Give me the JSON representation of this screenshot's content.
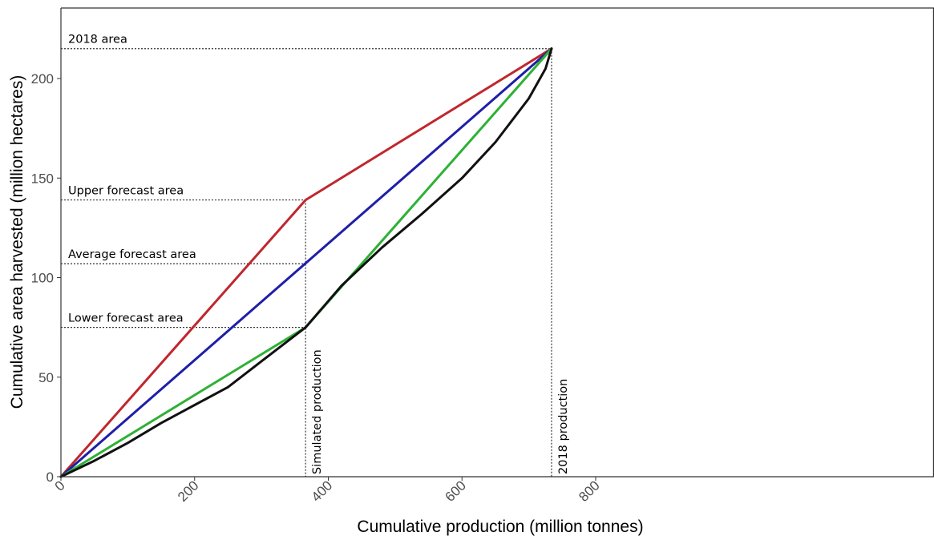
{
  "chart_data": {
    "type": "line",
    "title": "",
    "xlabel": "Cumulative production (million tonnes)",
    "ylabel": "Cumulative area harvested (million hectares)",
    "xlim": [
      0,
      800
    ],
    "ylim": [
      0,
      235
    ],
    "xticks": [
      0,
      200,
      400,
      600,
      800
    ],
    "yticks": [
      0,
      50,
      100,
      150,
      200
    ],
    "grid": false,
    "series": [
      {
        "color": "#c0272d",
        "x": [
          0,
          366,
          734
        ],
        "y": [
          0,
          139,
          215
        ]
      },
      {
        "color": "#1f1fa8",
        "x": [
          0,
          734
        ],
        "y": [
          0,
          215
        ]
      },
      {
        "color": "#2eb135",
        "x": [
          0,
          366,
          734
        ],
        "y": [
          0,
          75,
          215
        ]
      },
      {
        "color": "#111111",
        "x": [
          0,
          50,
          100,
          150,
          200,
          250,
          300,
          366,
          420,
          480,
          540,
          600,
          650,
          700,
          725,
          734
        ],
        "y": [
          0,
          8,
          17,
          27,
          36,
          45,
          58,
          75,
          96,
          115,
          132,
          150,
          168,
          190,
          205,
          215
        ]
      }
    ],
    "hlines": [
      {
        "y": 215,
        "label": "2018 area"
      },
      {
        "y": 139,
        "label": "Upper forecast area"
      },
      {
        "y": 107,
        "label": "Average forecast area"
      },
      {
        "y": 75,
        "label": "Lower forecast area"
      }
    ],
    "vlines": [
      {
        "x": 366,
        "label": "Simulated production"
      },
      {
        "x": 734,
        "label": "2018 production"
      }
    ]
  }
}
